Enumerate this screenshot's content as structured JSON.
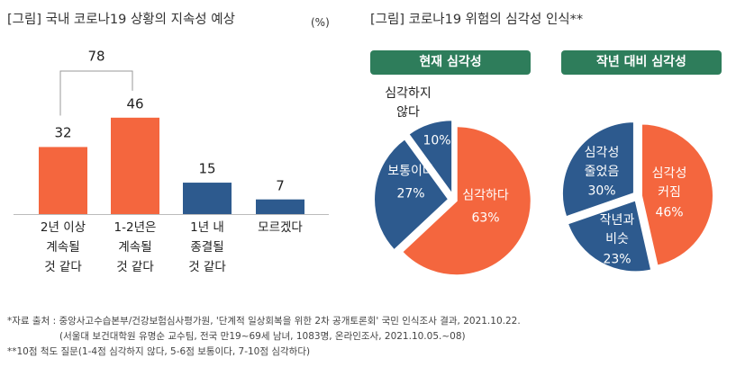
{
  "left_title": "[그림] 국내 코로나19 상황의 지속성 예상",
  "unit": "(%)",
  "right_title": "[그림] 코로나19 위험의 심각성 인식**",
  "chart_data": [
    {
      "type": "bar",
      "title": "[그림] 국내 코로나19 상황의 지속성 예상",
      "ylabel": "(%)",
      "categories": [
        "2년 이상\n계속될\n것 같다",
        "1-2년은\n계속될\n것 같다",
        "1년 내\n종결될\n것 같다",
        "모르겠다"
      ],
      "values": [
        32,
        46,
        15,
        7
      ],
      "colors": [
        "#f4663e",
        "#f4663e",
        "#2d5a8e",
        "#2d5a8e"
      ],
      "bracket": {
        "label": "78",
        "spans": [
          0,
          1
        ]
      }
    },
    {
      "type": "pie",
      "title": "현재 심각성",
      "slices": [
        {
          "label": "심각하다",
          "value": 63,
          "color": "#f4663e"
        },
        {
          "label": "보통이다",
          "value": 27,
          "color": "#2d5a8e"
        },
        {
          "label": "심각하지\n않다",
          "value": 10,
          "color": "#2d5a8e"
        }
      ]
    },
    {
      "type": "pie",
      "title": "작년 대비 심각성",
      "slices": [
        {
          "label": "심각성\n커짐",
          "value": 46,
          "color": "#f4663e"
        },
        {
          "label": "작년과\n비슷",
          "value": 23,
          "color": "#2d5a8e"
        },
        {
          "label": "심각성\n줄었음",
          "value": 30,
          "color": "#2d5a8e"
        }
      ]
    }
  ],
  "notes": [
    "*자료 출처 : 중앙사고수습본부/건강보험심사평가원, '단계적 일상회복을 위한 2차 공개토론회' 국민 인식조사 결과, 2021.10.22.",
    "(서울대 보건대학원 유명순 교수팀, 전국 만19~69세 남녀, 1083명, 온라인조사, 2021.10.05.~08)",
    "**10점 척도 질문(1-4점 심각하지 않다, 5-6점 보통이다, 7-10점 심각하다)"
  ]
}
